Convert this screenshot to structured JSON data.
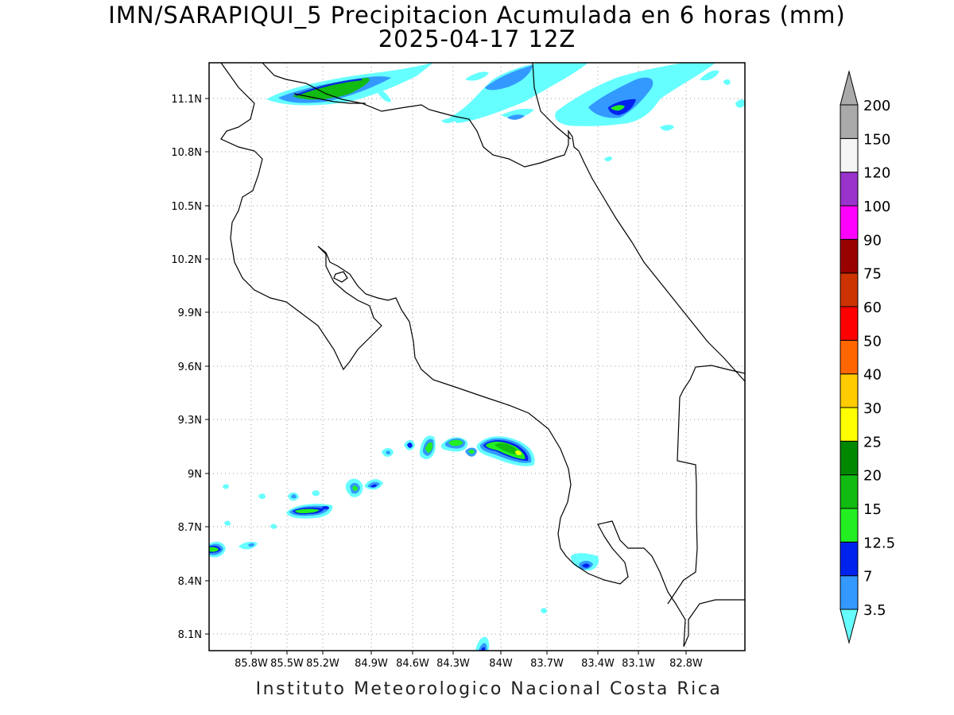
{
  "title_line1": "IMN/SARAPIQUI_5 Precipitacion Acumulada en 6 horas (mm)",
  "title_line2": "2025-04-17 12Z",
  "footer": "Instituto Meteorologico Nacional Costa Rica",
  "map": {
    "lon_range": [
      -86.05,
      -82.6
    ],
    "lat_range": [
      8.0,
      11.3
    ],
    "lon_ticks": [
      "85.8W",
      "85.5W",
      "85.2W",
      "84.9W",
      "84.6W",
      "84.3W",
      "84W",
      "83.7W",
      "83.4W",
      "83.1W",
      "82.8W"
    ],
    "lat_ticks": [
      "11.1N",
      "10.8N",
      "10.5N",
      "10.2N",
      "9.9N",
      "9.6N",
      "9.3N",
      "9N",
      "8.7N",
      "8.4N",
      "8.1N"
    ],
    "grid": "dotted"
  },
  "colorbar": {
    "labels": [
      "3.5",
      "7",
      "12.5",
      "15",
      "20",
      "25",
      "30",
      "40",
      "50",
      "60",
      "75",
      "90",
      "100",
      "120",
      "150",
      "200"
    ],
    "colors": [
      "#66ffff",
      "#3399ff",
      "#0022ee",
      "#22ee22",
      "#11bb11",
      "#008800",
      "#ffff00",
      "#ffcc00",
      "#ff6600",
      "#ff0000",
      "#cc3300",
      "#990000",
      "#ff00ff",
      "#9933cc",
      "#f5f5f5",
      "#aaaaaa"
    ],
    "ends": "triangular"
  }
}
